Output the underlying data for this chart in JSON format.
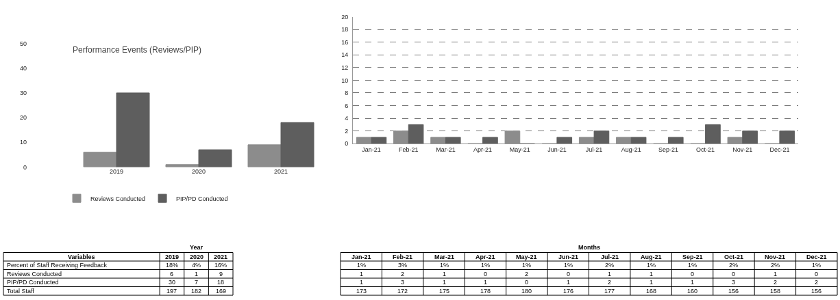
{
  "chart_data": [
    {
      "type": "bar",
      "title": "Performance Events (Reviews/PIP)",
      "categories": [
        "2019",
        "2020",
        "2021"
      ],
      "ylim": [
        0,
        50
      ],
      "yticks": [
        0,
        10,
        20,
        30,
        40,
        50
      ],
      "grid": false,
      "legend": "bottom",
      "series": [
        {
          "name": "Reviews Conducted",
          "color": "#8c8c8c",
          "values": [
            6,
            1,
            9
          ]
        },
        {
          "name": "PIP/PD Conducted",
          "color": "#5e5e5e",
          "values": [
            30,
            7,
            18
          ]
        }
      ]
    },
    {
      "type": "bar",
      "categories": [
        "Jan-21",
        "Feb-21",
        "Mar-21",
        "Apr-21",
        "May-21",
        "Jun-21",
        "Jul-21",
        "Aug-21",
        "Sep-21",
        "Oct-21",
        "Nov-21",
        "Dec-21"
      ],
      "ylim": [
        0,
        20
      ],
      "yticks": [
        0,
        2,
        4,
        6,
        8,
        10,
        12,
        14,
        16,
        18,
        20
      ],
      "grid": "y",
      "series": [
        {
          "color": "#8c8c8c",
          "values": [
            1,
            2,
            1,
            0,
            2,
            0,
            1,
            1,
            0,
            0,
            1,
            0
          ]
        },
        {
          "color": "#5e5e5e",
          "values": [
            1,
            3,
            1,
            1,
            0,
            1,
            2,
            1,
            1,
            3,
            2,
            2
          ]
        }
      ]
    },
    {
      "type": "other",
      "title": "Year",
      "legend_title": "Variables",
      "data_labels": true,
      "categories": [
        "2019",
        "2020",
        "2021"
      ],
      "series": [
        {
          "name": "Percent of Staff Receiving Feedback",
          "values": [
            18,
            4,
            16
          ],
          "value_labels": [
            "18%",
            "4%",
            "16%"
          ]
        },
        {
          "name": "Reviews Conducted",
          "values": [
            6,
            1,
            9
          ]
        },
        {
          "name": "PIP/PD Conducted",
          "values": [
            30,
            7,
            18
          ]
        },
        {
          "name": "Total Staff",
          "values": [
            197,
            182,
            169
          ]
        }
      ]
    },
    {
      "type": "other",
      "title": "Months",
      "data_labels": true,
      "categories": [
        "Jan-21",
        "Feb-21",
        "Mar-21",
        "Apr-21",
        "May-21",
        "Jun-21",
        "Jul-21",
        "Aug-21",
        "Sep-21",
        "Oct-21",
        "Nov-21",
        "Dec-21"
      ],
      "series": [
        {
          "values": [
            1,
            3,
            1,
            1,
            1,
            1,
            2,
            1,
            1,
            2,
            2,
            1
          ],
          "value_labels": [
            "1%",
            "3%",
            "1%",
            "1%",
            "1%",
            "1%",
            "2%",
            "1%",
            "1%",
            "2%",
            "2%",
            "1%"
          ]
        },
        {
          "values": [
            1,
            2,
            1,
            0,
            2,
            0,
            1,
            1,
            0,
            0,
            1,
            0
          ]
        },
        {
          "values": [
            1,
            3,
            1,
            1,
            0,
            1,
            2,
            1,
            1,
            3,
            2,
            2
          ]
        },
        {
          "values": [
            173,
            172,
            175,
            178,
            180,
            176,
            177,
            168,
            160,
            156,
            158,
            156
          ]
        }
      ]
    }
  ]
}
